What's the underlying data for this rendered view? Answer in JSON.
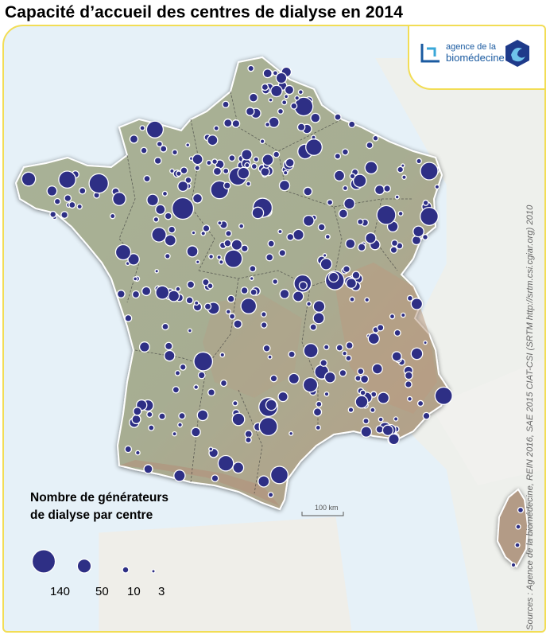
{
  "title": "Capacité d’accueil des centres de dialyse en 2014",
  "logo": {
    "line1": "agence de la",
    "line2": "biomédecine"
  },
  "legend": {
    "title_line1": "Nombre de générateurs",
    "title_line2": "de dialyse par centre",
    "items": [
      {
        "label": "140",
        "value": 140
      },
      {
        "label": "50",
        "value": 50
      },
      {
        "label": "10",
        "value": 10
      },
      {
        "label": "3",
        "value": 3
      }
    ]
  },
  "scale_bar": "100 km",
  "sources": "Sources : Agence de la biomédecine, REIN 2016, SAE 2015 CIAT-CSI (SRTM http://srtm.csi.cgiar.org) 2010",
  "colors": {
    "circle_fill": "#2e2f85",
    "circle_stroke": "#ffffff",
    "frame": "#f2dd55",
    "sea": "#e6f1f8",
    "land": "#a7b096",
    "relief": "#b89a82"
  }
}
